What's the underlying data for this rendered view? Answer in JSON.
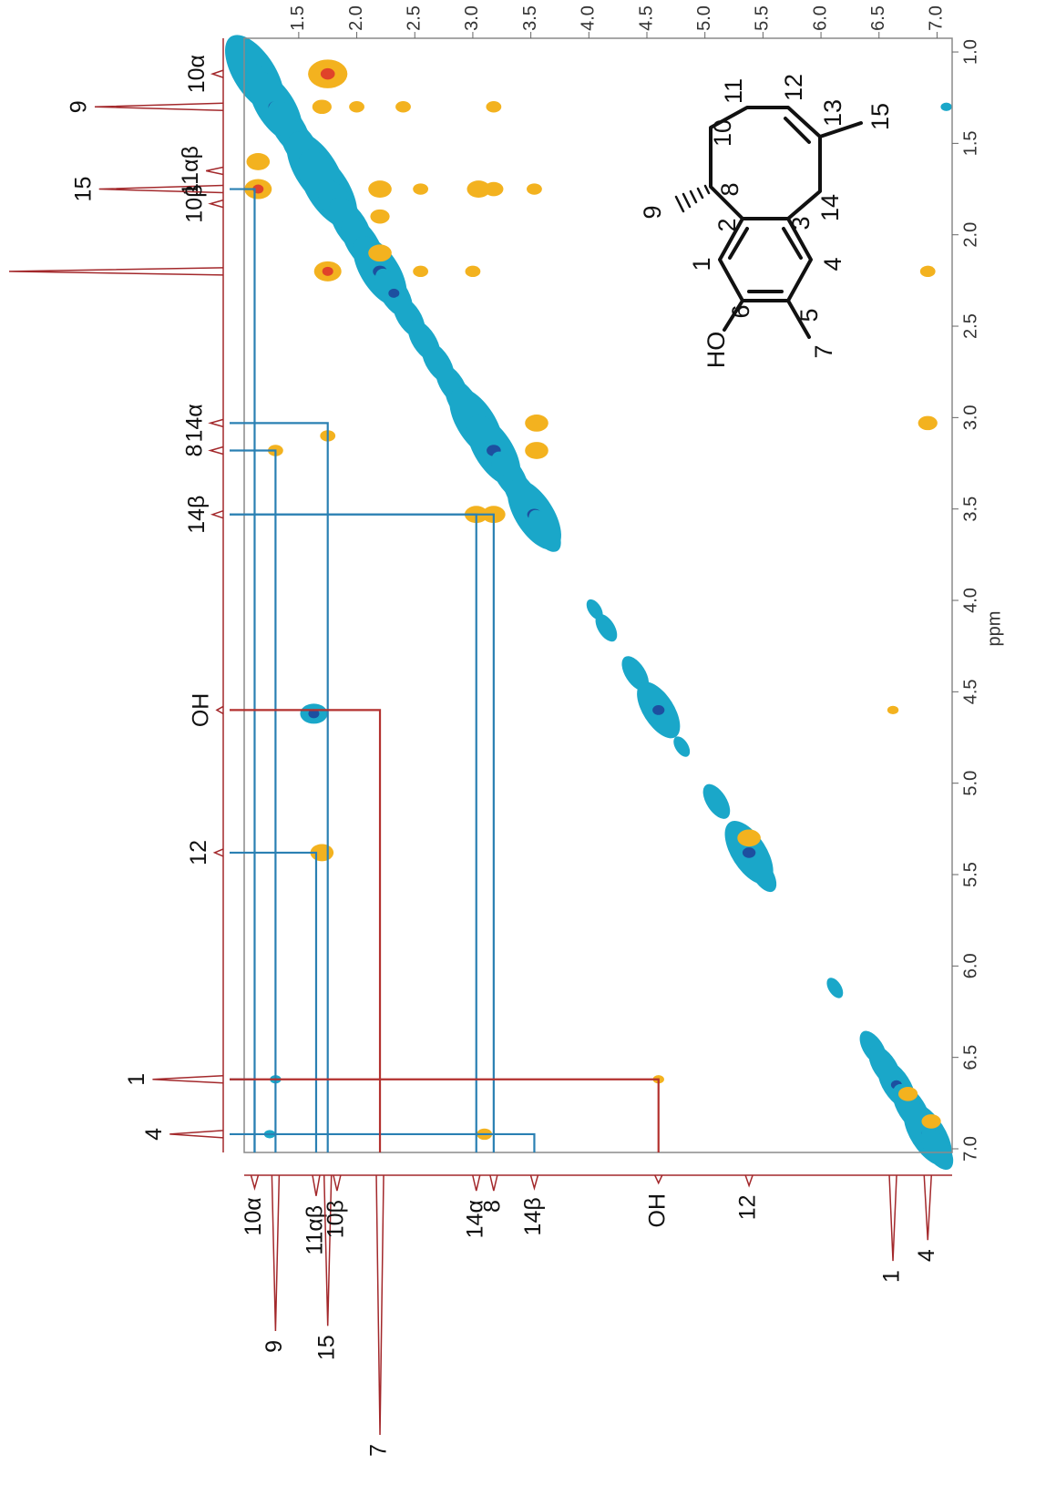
{
  "chart_data": {
    "type": "noesy",
    "xlim": [
      1.03,
      7.13
    ],
    "ylim": [
      0.925,
      7.02
    ],
    "xticks": [
      1.5,
      {
        "value": 2,
        "label": "2.0"
      },
      2.5,
      {
        "value": 3,
        "label": "3.0"
      },
      3.5,
      {
        "value": 4,
        "label": "4.0"
      },
      4.5,
      {
        "value": 5,
        "label": "5.0"
      },
      5.5,
      {
        "value": 6,
        "label": "6.0"
      },
      6.5,
      {
        "value": 7,
        "label": "7.0"
      }
    ],
    "yticks": [
      {
        "value": 1,
        "label": "1.0"
      },
      1.5,
      {
        "value": 2,
        "label": "2.0"
      },
      2.5,
      {
        "value": 3,
        "label": "3.0"
      },
      3.5,
      {
        "value": 4,
        "label": "4.0"
      },
      4.5,
      {
        "value": 5,
        "label": "5.0"
      },
      5.5,
      {
        "value": 6,
        "label": "6.0"
      },
      6.5,
      {
        "value": 7,
        "label": "7.0"
      }
    ],
    "ylabel": "ppm",
    "trace_color": "#a3282b",
    "positive_color": "#1aa7c9",
    "positive_core_color": "#1d4fa0",
    "negative_color": "#f3b21f",
    "negative_core_color": "#e0432a",
    "signals": [
      {
        "label": "10α",
        "ppm": 1.12,
        "height": 5
      },
      {
        "label": "9",
        "ppm": 1.3,
        "height": 60
      },
      {
        "label": "11αβ",
        "ppm": 1.65,
        "height": 8
      },
      {
        "label": "15",
        "ppm": 1.75,
        "height": 58
      },
      {
        "label": "10β",
        "ppm": 1.83,
        "height": 6
      },
      {
        "label": "7",
        "ppm": 2.2,
        "height": 100
      },
      {
        "label": "14α",
        "ppm": 3.03,
        "height": 6
      },
      {
        "label": "8",
        "ppm": 3.18,
        "height": 6
      },
      {
        "label": "14β",
        "ppm": 3.53,
        "height": 5
      },
      {
        "label": "OH",
        "ppm": 4.6,
        "height": 3
      },
      {
        "label": "12",
        "ppm": 5.38,
        "height": 4
      },
      {
        "label": "1",
        "ppm": 6.62,
        "height": 33
      },
      {
        "label": "4",
        "ppm": 6.92,
        "height": 25
      }
    ],
    "positive_peaks": [
      {
        "x": 1.12,
        "y": 1.12,
        "intensity": 9
      },
      {
        "x": 1.22,
        "y": 1.22,
        "intensity": 6
      },
      {
        "x": 1.3,
        "y": 1.3,
        "intensity": 8
      },
      {
        "x": 1.42,
        "y": 1.42,
        "intensity": 6
      },
      {
        "x": 1.52,
        "y": 1.52,
        "intensity": 6
      },
      {
        "x": 1.65,
        "y": 1.65,
        "intensity": 9
      },
      {
        "x": 1.75,
        "y": 1.75,
        "intensity": 9
      },
      {
        "x": 1.85,
        "y": 1.85,
        "intensity": 6
      },
      {
        "x": 1.95,
        "y": 1.95,
        "intensity": 6
      },
      {
        "x": 2.05,
        "y": 2.05,
        "intensity": 6
      },
      {
        "x": 2.2,
        "y": 2.2,
        "intensity": 8
      },
      {
        "x": 2.32,
        "y": 2.32,
        "intensity": 5
      },
      {
        "x": 2.45,
        "y": 2.45,
        "intensity": 4
      },
      {
        "x": 2.58,
        "y": 2.58,
        "intensity": 4
      },
      {
        "x": 2.7,
        "y": 2.7,
        "intensity": 4
      },
      {
        "x": 2.82,
        "y": 2.82,
        "intensity": 4
      },
      {
        "x": 2.92,
        "y": 2.92,
        "intensity": 5
      },
      {
        "x": 3.03,
        "y": 3.03,
        "intensity": 8
      },
      {
        "x": 3.18,
        "y": 3.18,
        "intensity": 8
      },
      {
        "x": 3.32,
        "y": 3.32,
        "intensity": 5
      },
      {
        "x": 3.42,
        "y": 3.42,
        "intensity": 5
      },
      {
        "x": 3.53,
        "y": 3.53,
        "intensity": 8
      },
      {
        "x": 3.62,
        "y": 3.62,
        "intensity": 4
      },
      {
        "x": 4.05,
        "y": 4.05,
        "intensity": 1
      },
      {
        "x": 4.15,
        "y": 4.15,
        "intensity": 2
      },
      {
        "x": 4.4,
        "y": 4.4,
        "intensity": 3
      },
      {
        "x": 4.6,
        "y": 4.6,
        "intensity": 6
      },
      {
        "x": 4.8,
        "y": 4.8,
        "intensity": 1
      },
      {
        "x": 5.1,
        "y": 5.1,
        "intensity": 3
      },
      {
        "x": 5.38,
        "y": 5.38,
        "intensity": 7
      },
      {
        "x": 5.5,
        "y": 5.5,
        "intensity": 3
      },
      {
        "x": 6.12,
        "y": 6.12,
        "intensity": 1
      },
      {
        "x": 6.45,
        "y": 6.45,
        "intensity": 3
      },
      {
        "x": 6.55,
        "y": 6.55,
        "intensity": 4
      },
      {
        "x": 6.65,
        "y": 6.65,
        "intensity": 5
      },
      {
        "x": 6.78,
        "y": 6.78,
        "intensity": 5
      },
      {
        "x": 6.92,
        "y": 6.92,
        "intensity": 7
      },
      {
        "x": 7.0,
        "y": 7.0,
        "intensity": 4
      },
      {
        "x": 1.63,
        "y": 4.62,
        "intensity": 5
      },
      {
        "x": 7.08,
        "y": 1.3,
        "intensity": 1
      },
      {
        "x": 1.25,
        "y": 6.92,
        "intensity": 1
      },
      {
        "x": 1.3,
        "y": 6.62,
        "intensity": 1
      }
    ],
    "negative_peaks": [
      {
        "x": 1.75,
        "y": 1.12,
        "intensity": 8
      },
      {
        "x": 1.15,
        "y": 1.75,
        "intensity": 5
      },
      {
        "x": 1.15,
        "y": 1.6,
        "intensity": 4
      },
      {
        "x": 1.7,
        "y": 1.3,
        "intensity": 3
      },
      {
        "x": 2.0,
        "y": 1.3,
        "intensity": 2
      },
      {
        "x": 2.4,
        "y": 1.3,
        "intensity": 2
      },
      {
        "x": 3.18,
        "y": 1.3,
        "intensity": 2
      },
      {
        "x": 1.75,
        "y": 2.2,
        "intensity": 5
      },
      {
        "x": 2.2,
        "y": 1.75,
        "intensity": 4
      },
      {
        "x": 2.2,
        "y": 1.9,
        "intensity": 3
      },
      {
        "x": 3.05,
        "y": 1.75,
        "intensity": 4
      },
      {
        "x": 3.18,
        "y": 1.75,
        "intensity": 3
      },
      {
        "x": 3.53,
        "y": 1.75,
        "intensity": 2
      },
      {
        "x": 2.55,
        "y": 1.75,
        "intensity": 2
      },
      {
        "x": 2.55,
        "y": 2.2,
        "intensity": 2
      },
      {
        "x": 3.0,
        "y": 2.2,
        "intensity": 2
      },
      {
        "x": 1.3,
        "y": 3.18,
        "intensity": 2
      },
      {
        "x": 1.75,
        "y": 3.1,
        "intensity": 2
      },
      {
        "x": 3.55,
        "y": 3.03,
        "intensity": 4
      },
      {
        "x": 3.55,
        "y": 3.18,
        "intensity": 4
      },
      {
        "x": 3.03,
        "y": 3.53,
        "intensity": 4
      },
      {
        "x": 3.18,
        "y": 3.53,
        "intensity": 4
      },
      {
        "x": 1.7,
        "y": 5.38,
        "intensity": 4
      },
      {
        "x": 5.38,
        "y": 5.3,
        "intensity": 4
      },
      {
        "x": 6.92,
        "y": 2.2,
        "intensity": 2
      },
      {
        "x": 6.92,
        "y": 3.03,
        "intensity": 3
      },
      {
        "x": 6.62,
        "y": 4.6,
        "intensity": 1
      },
      {
        "x": 4.6,
        "y": 6.62,
        "intensity": 1
      },
      {
        "x": 3.1,
        "y": 6.92,
        "intensity": 2
      },
      {
        "x": 6.75,
        "y": 6.7,
        "intensity": 3
      },
      {
        "x": 6.95,
        "y": 6.85,
        "intensity": 3
      },
      {
        "x": 2.2,
        "y": 2.1,
        "intensity": 4
      }
    ],
    "correlations": [
      {
        "x": 1.12,
        "y": 1.75,
        "color": "#2a80b3"
      },
      {
        "x": 1.75,
        "y": 3.03,
        "color": "#2a80b3"
      },
      {
        "x": 1.3,
        "y": 3.18,
        "color": "#2a80b3"
      },
      {
        "x": 3.03,
        "y": 3.53,
        "color": "#2a80b3"
      },
      {
        "x": 3.18,
        "y": 3.53,
        "color": "#2a80b3"
      },
      {
        "x": 1.65,
        "y": 5.38,
        "color": "#2a80b3"
      },
      {
        "x": 1.12,
        "y": 6.62,
        "color": "#2a80b3"
      },
      {
        "x": 3.53,
        "y": 6.92,
        "color": "#2a80b3"
      },
      {
        "x": 2.2,
        "y": 4.6,
        "color": "#b3312f"
      },
      {
        "x": 4.6,
        "y": 6.62,
        "color": "#b3312f"
      }
    ]
  },
  "structure": {
    "labels": [
      "1",
      "2",
      "3",
      "4",
      "5",
      "6",
      "7",
      "8",
      "9",
      "10",
      "11",
      "12",
      "13",
      "14",
      "15",
      "HO"
    ]
  }
}
